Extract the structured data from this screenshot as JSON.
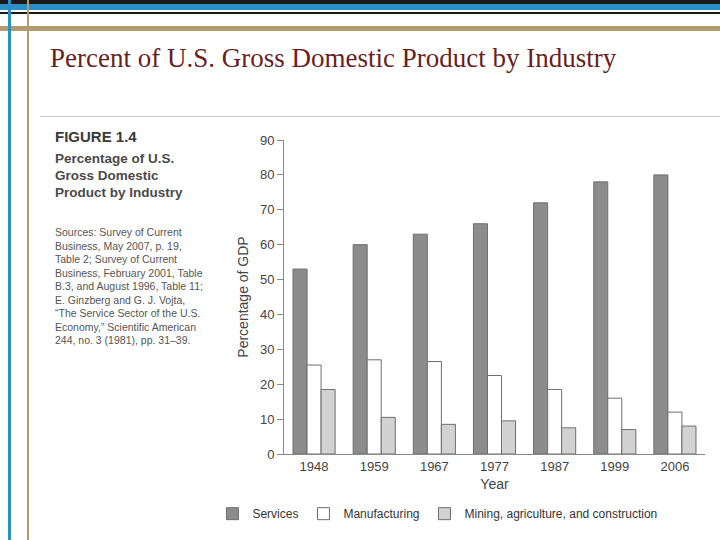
{
  "slide_title": "Percent of U.S. Gross Domestic Product by Industry",
  "figure_label": "FIGURE 1.4",
  "sources": "Sources: Survey of Current Business, May 2007, p. 19, Table 2; Survey of Current Business, February 2001, Table B.3, and August 1996, Table 11; E. Ginzberg and G. J. Vojta, “The Service Sector of the U.S. Economy,” Scientific American 244, no. 3 (1981), pp. 31–39.",
  "chart_data": {
    "type": "bar",
    "title": "Percentage of U.S. Gross Domestic Product by Industry",
    "x_label": "Year",
    "y_label": "Percentage of GDP",
    "categories": [
      "1948",
      "1959",
      "1967",
      "1977",
      "1987",
      "1999",
      "2006"
    ],
    "series": [
      {
        "name": "Services",
        "color": "#8c8c8c",
        "values": [
          53,
          60,
          63,
          66,
          72,
          78,
          80
        ]
      },
      {
        "name": "Manufacturing",
        "color": "#ffffff",
        "values": [
          25.5,
          27,
          26.5,
          22.5,
          18.5,
          16,
          12
        ]
      },
      {
        "name": "Mining, agriculture, and construction",
        "color": "#d2d2d2",
        "values": [
          18.5,
          10.5,
          8.5,
          9.5,
          7.5,
          7,
          8
        ]
      }
    ],
    "ylim": [
      0,
      90
    ],
    "yticks": [
      0,
      10,
      20,
      30,
      40,
      50,
      60,
      70,
      80,
      90
    ],
    "grid": false,
    "legend": "bottom"
  }
}
